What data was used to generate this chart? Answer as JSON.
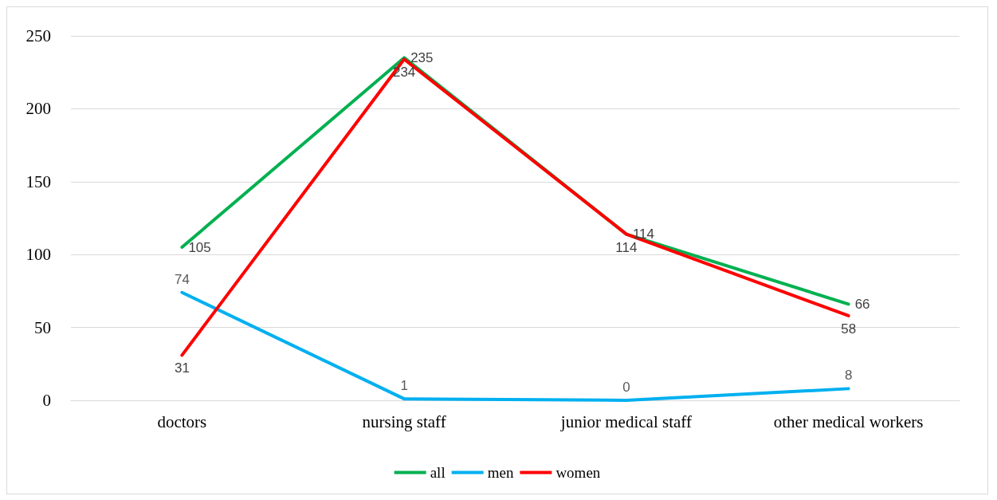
{
  "chart_data": {
    "type": "line",
    "categories": [
      "doctors",
      "nursing staff",
      "junior medical staff",
      "other medical workers"
    ],
    "series": [
      {
        "name": "all",
        "color": "#00b050",
        "values": [
          105,
          235,
          114,
          66
        ]
      },
      {
        "name": "men",
        "color": "#00b0f0",
        "values": [
          74,
          1,
          0,
          8
        ]
      },
      {
        "name": "women",
        "color": "#ff0000",
        "values": [
          31,
          234,
          114,
          58
        ]
      }
    ],
    "ylim": [
      0,
      250
    ],
    "yticks": [
      0,
      50,
      100,
      150,
      200,
      250
    ],
    "grid": "y",
    "legend": "bottom",
    "marker": "none",
    "line_style": "solid",
    "data_labels": true
  }
}
